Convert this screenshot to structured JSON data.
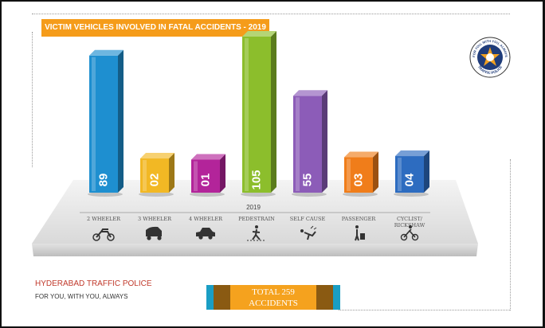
{
  "title": "VICTIM VEHICLES INVOLVED IN FATAL ACCIDENTS - 2019",
  "logo_text": {
    "top": "FOR YOU, WITH YOU, ALWAYS",
    "bottom": "TRAFFIC POLICE"
  },
  "footer": {
    "org": "HYDERABAD TRAFFIC POLICE",
    "tagline": "FOR YOU, WITH YOU, ALWAYS",
    "total_line1": "TOTAL 259",
    "total_line2": "ACCIDENTS"
  },
  "colors": {
    "banner": "#f59c1a",
    "org_text": "#c0392b",
    "total_orange": "#f5a21e",
    "total_brown": "#8a5a12",
    "total_teal": "#1a9ec4"
  },
  "chart_data": {
    "type": "bar",
    "year_label": "2019",
    "categories": [
      "2 WHEELER",
      "3 WHEELER",
      "4 WHEELER",
      "PEDESTRAIN",
      "SELF CAUSE",
      "PASSENGER",
      "CYCLIST/ RICKSHAW"
    ],
    "values": [
      89,
      2,
      1,
      105,
      55,
      3,
      4
    ],
    "value_labels": [
      "89",
      "02",
      "01",
      "105",
      "55",
      "03",
      "04"
    ],
    "icons": [
      "motorcycle-icon",
      "auto-rickshaw-icon",
      "car-icon",
      "pedestrian-icon",
      "self-fall-icon",
      "passenger-icon",
      "cyclist-icon"
    ],
    "colors": [
      "#1e8fd0",
      "#f2b824",
      "#b3249a",
      "#8cbe2c",
      "#8c5cb8",
      "#f07d1a",
      "#2d6cc0"
    ],
    "ylim": [
      0,
      105
    ]
  }
}
